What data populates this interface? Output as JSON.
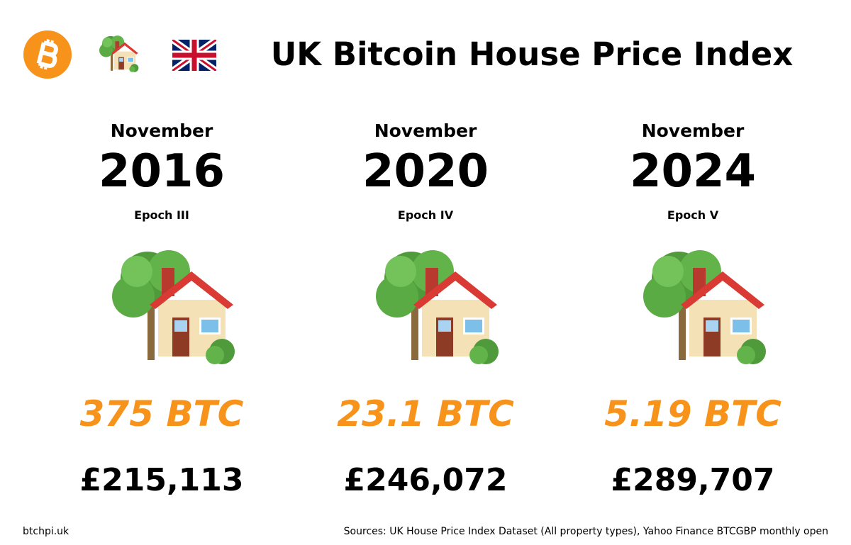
{
  "header": {
    "title": "UK Bitcoin House Price Index"
  },
  "columns": [
    {
      "month": "November",
      "year": "2016",
      "epoch": "Epoch III",
      "btc": "375 BTC",
      "gbp": "£215,113"
    },
    {
      "month": "November",
      "year": "2020",
      "epoch": "Epoch IV",
      "btc": "23.1 BTC",
      "gbp": "£246,072"
    },
    {
      "month": "November",
      "year": "2024",
      "epoch": "Epoch V",
      "btc": "5.19 BTC",
      "gbp": "£289,707"
    }
  ],
  "footer": {
    "site": "btchpi.uk",
    "sources": "Sources: UK House Price Index Dataset (All property types), Yahoo Finance BTCGBP monthly open"
  }
}
